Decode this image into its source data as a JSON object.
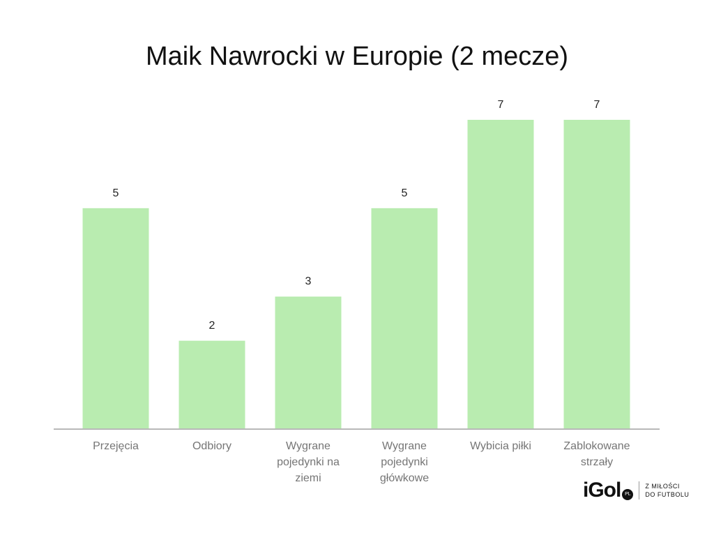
{
  "chart_data": {
    "type": "bar",
    "title": "Maik Nawrocki w Europie (2 mecze)",
    "categories": [
      "Przejęcia",
      "Odbiory",
      "Wygrane pojedynki na ziemi",
      "Wygrane pojedynki główkowe",
      "Wybicia piłki",
      "Zablokowane strzały"
    ],
    "values": [
      5,
      2,
      3,
      5,
      7,
      7
    ],
    "color": "#b9ecb0"
  },
  "logo": {
    "name": "iGol",
    "badge": "PL",
    "tagline": [
      "Z MIŁOŚCI",
      "DO FUTBOLU"
    ]
  }
}
